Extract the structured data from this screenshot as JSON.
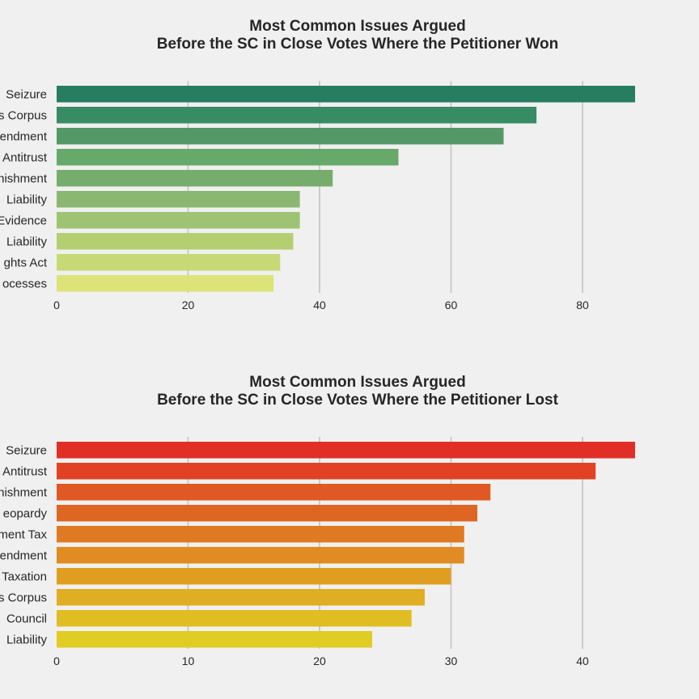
{
  "chart_data": [
    {
      "type": "bar",
      "orientation": "horizontal",
      "title_line1": "Most Common Issues Argued",
      "title_line2": "Before the SC in Close Votes Where the Petitioner Won",
      "categories": [
        "Seizure",
        "s Corpus",
        "endment",
        "Antitrust",
        "nishment",
        "Liability",
        "Evidence",
        "Liability",
        "ghts Act",
        "ocesses"
      ],
      "values": [
        88,
        73,
        68,
        52,
        42,
        37,
        37,
        36,
        34,
        33
      ],
      "xticks": [
        "0",
        "20",
        "40",
        "60",
        "80"
      ],
      "xlim": [
        0,
        88
      ],
      "grid": "vertical",
      "colors": [
        "#267d60",
        "#378c64",
        "#549868",
        "#67a86b",
        "#77ad6c",
        "#8ab873",
        "#9ec473",
        "#b3cf72",
        "#c7d974",
        "#dce378"
      ]
    },
    {
      "type": "bar",
      "orientation": "horizontal",
      "title_line1": "Most Common Issues Argued",
      "title_line2": "Before the SC in Close Votes Where the Petitioner Lost",
      "categories": [
        "Seizure",
        "Antitrust",
        "nishment",
        "eopardy",
        "ment Tax",
        "endment",
        "Taxation",
        "s Corpus",
        "Council",
        "Liability"
      ],
      "values": [
        44,
        41,
        33,
        32,
        31,
        31,
        30,
        28,
        27,
        24
      ],
      "xticks": [
        "0",
        "10",
        "20",
        "30",
        "40"
      ],
      "xlim": [
        0,
        44
      ],
      "grid": "vertical",
      "colors": [
        "#e12f27",
        "#e14224",
        "#e05924",
        "#df6622",
        "#e07a22",
        "#e08c22",
        "#e09e20",
        "#e0ae22",
        "#e0bd22",
        "#e0cc22"
      ]
    }
  ]
}
